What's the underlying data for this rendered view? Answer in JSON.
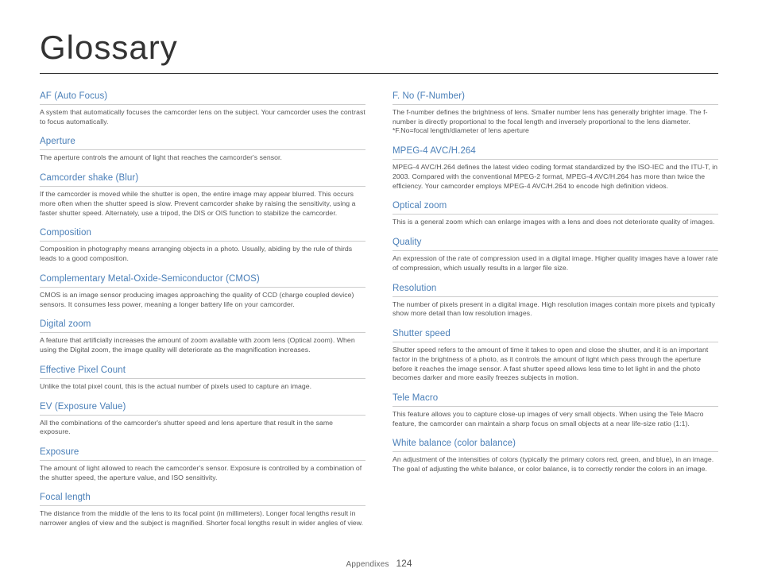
{
  "title": "Glossary",
  "footer": {
    "section": "Appendixes",
    "page": "124"
  },
  "left": [
    {
      "term": "AF (Auto Focus)",
      "def": "A system that automatically focuses the camcorder lens on the subject. Your camcorder uses the contrast to focus automatically."
    },
    {
      "term": "Aperture",
      "def": "The aperture controls the amount of light that reaches the camcorder's sensor."
    },
    {
      "term": "Camcorder shake (Blur)",
      "def": "If the camcorder is moved while the shutter is open, the entire image may appear blurred. This occurs more often when the shutter speed is slow. Prevent camcorder shake by raising the sensitivity, using a faster shutter speed. Alternately, use a tripod, the DIS or OIS function to stabilize the camcorder."
    },
    {
      "term": "Composition",
      "def": "Composition in photography means arranging objects in a photo. Usually, abiding by the rule of thirds leads to a good composition."
    },
    {
      "term": "Complementary Metal-Oxide-Semiconductor (CMOS)",
      "def": "CMOS is an image sensor producing images approaching the quality of CCD (charge coupled device) sensors. It consumes less power, meaning a longer battery life on your camcorder."
    },
    {
      "term": "Digital zoom",
      "def": "A feature that artificially increases the amount of zoom available with zoom lens (Optical zoom). When using the Digital zoom, the image quality will deteriorate as the magnification increases."
    },
    {
      "term": "Effective Pixel Count",
      "def": "Unlike the total pixel count, this is the actual number of pixels used to capture an image."
    },
    {
      "term": "EV (Exposure Value)",
      "def": "All the combinations of the camcorder's shutter speed and lens aperture that result in the same exposure."
    },
    {
      "term": "Exposure",
      "def": "The amount of light allowed to reach the camcorder's sensor. Exposure is controlled by a combination of the shutter speed, the aperture value, and ISO sensitivity."
    },
    {
      "term": "Focal length",
      "def": "The distance from the middle of the lens to its focal point (in millimeters). Longer focal lengths result in narrower angles of view and the subject is magnified. Shorter focal lengths result in wider angles of view."
    }
  ],
  "right": [
    {
      "term": "F. No (F-Number)",
      "def": "The f-number defines the brightness of lens. Smaller number lens has generally brighter image. The f-number is directly proportional to the focal length and inversely proportional to the lens diameter.\n*F.No=focal length/diameter of lens aperture"
    },
    {
      "term": "MPEG-4 AVC/H.264",
      "def": "MPEG-4 AVC/H.264 defines the latest video coding format standardized by the ISO-IEC and the ITU-T, in 2003. Compared with the conventional MPEG-2 format, MPEG-4 AVC/H.264 has more than twice the efficiency. Your camcorder employs MPEG-4 AVC/H.264 to encode high definition videos."
    },
    {
      "term": "Optical zoom",
      "def": "This is a general zoom which can enlarge images with a lens and does not deteriorate quality of images."
    },
    {
      "term": "Quality",
      "def": "An expression of the rate of compression used in a digital image. Higher quality images have a lower rate of compression, which usually results in a larger file size."
    },
    {
      "term": "Resolution",
      "def": "The number of pixels present in a digital image. High resolution images contain more pixels and typically show more detail than low resolution images."
    },
    {
      "term": "Shutter speed",
      "def": "Shutter speed refers to the amount of time it takes to open and close the shutter, and it is an important factor in the brightness of a photo, as it controls the amount of light which pass through the aperture before it reaches the image sensor. A fast shutter speed allows less time to let light in and the photo becomes darker and more easily freezes subjects in motion."
    },
    {
      "term": "Tele Macro",
      "def": "This feature allows you to capture close-up images of very small objects. When using the Tele Macro feature, the camcorder can maintain a sharp focus on small objects at a near life-size ratio (1:1)."
    },
    {
      "term": "White balance (color balance)",
      "def": "An adjustment of the intensities of colors (typically the primary colors red, green, and blue), in an image. The goal of adjusting the white balance, or color balance, is to correctly render the colors in an image."
    }
  ]
}
